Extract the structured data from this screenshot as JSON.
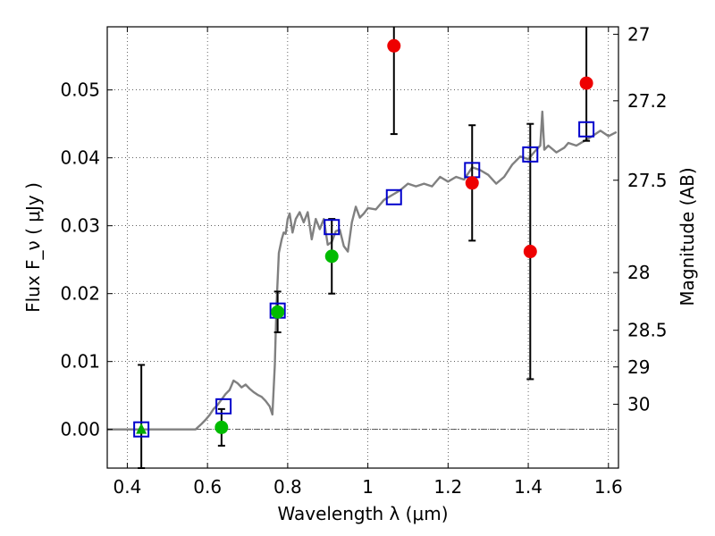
{
  "chart_data": {
    "type": "scatter",
    "title": "",
    "xlabel": "Wavelength  λ (μm)",
    "ylabel": "Flux  F_ν  ( μJy )",
    "y2label": "Magnitude (AB)",
    "xlim": [
      0.35,
      1.625
    ],
    "ylim": [
      -0.0057,
      0.0593
    ],
    "grid": true,
    "x_ticks": [
      0.4,
      0.6,
      0.8,
      1.0,
      1.2,
      1.4,
      1.6
    ],
    "x_tick_labels": [
      "0.4",
      "0.6",
      "0.8",
      "1",
      "1.2",
      "1.4",
      "1.6"
    ],
    "y_ticks": [
      0.0,
      0.01,
      0.02,
      0.03,
      0.04,
      0.05
    ],
    "y_tick_labels": [
      "0.00",
      "0.01",
      "0.02",
      "0.03",
      "0.04",
      "0.05"
    ],
    "y2_ticks": [
      {
        "label": "27",
        "flux": 0.0582
      },
      {
        "label": "27.2",
        "flux": 0.0484
      },
      {
        "label": "27.5",
        "flux": 0.0367
      },
      {
        "label": "28",
        "flux": 0.0231
      },
      {
        "label": "28.5",
        "flux": 0.0146
      },
      {
        "label": "29",
        "flux": 0.0092
      },
      {
        "label": "30",
        "flux": 0.0037
      }
    ],
    "zero_line": 0.0,
    "model_spectrum": {
      "name": "model",
      "color": "#808080",
      "x": [
        0.35,
        0.4,
        0.45,
        0.5,
        0.55,
        0.57,
        0.585,
        0.595,
        0.605,
        0.615,
        0.625,
        0.635,
        0.645,
        0.655,
        0.66,
        0.665,
        0.675,
        0.685,
        0.695,
        0.705,
        0.715,
        0.725,
        0.735,
        0.745,
        0.755,
        0.762,
        0.768,
        0.772,
        0.778,
        0.785,
        0.79,
        0.795,
        0.8,
        0.805,
        0.812,
        0.82,
        0.83,
        0.84,
        0.85,
        0.86,
        0.87,
        0.88,
        0.89,
        0.9,
        0.91,
        0.92,
        0.93,
        0.94,
        0.95,
        0.96,
        0.97,
        0.98,
        0.99,
        1.0,
        1.02,
        1.04,
        1.06,
        1.08,
        1.1,
        1.12,
        1.14,
        1.16,
        1.18,
        1.2,
        1.22,
        1.24,
        1.26,
        1.28,
        1.3,
        1.32,
        1.34,
        1.36,
        1.38,
        1.4,
        1.42,
        1.43,
        1.435,
        1.44,
        1.45,
        1.47,
        1.49,
        1.5,
        1.52,
        1.54,
        1.56,
        1.58,
        1.6,
        1.62
      ],
      "y": [
        0.0,
        0.0,
        0.0,
        0.0,
        0.0,
        0.0,
        0.0008,
        0.0014,
        0.0021,
        0.003,
        0.0036,
        0.0044,
        0.0052,
        0.0058,
        0.0065,
        0.0072,
        0.0068,
        0.0062,
        0.0066,
        0.006,
        0.0055,
        0.0051,
        0.0048,
        0.0042,
        0.0034,
        0.0022,
        0.0095,
        0.018,
        0.026,
        0.028,
        0.029,
        0.0288,
        0.031,
        0.0318,
        0.029,
        0.031,
        0.032,
        0.0305,
        0.032,
        0.028,
        0.031,
        0.0295,
        0.031,
        0.0272,
        0.0276,
        0.0292,
        0.0294,
        0.027,
        0.0262,
        0.0305,
        0.0328,
        0.0312,
        0.0318,
        0.0326,
        0.0324,
        0.0338,
        0.0345,
        0.0352,
        0.0362,
        0.0358,
        0.0362,
        0.0358,
        0.0372,
        0.0365,
        0.0372,
        0.0368,
        0.0386,
        0.0382,
        0.0375,
        0.0362,
        0.0372,
        0.039,
        0.0402,
        0.0398,
        0.0412,
        0.0418,
        0.0468,
        0.0412,
        0.0418,
        0.0408,
        0.0415,
        0.0422,
        0.0418,
        0.0425,
        0.0432,
        0.044,
        0.0432,
        0.0438
      ]
    },
    "series": [
      {
        "name": "model-photometry",
        "marker": "open-square",
        "color": "#0000cc",
        "x": [
          0.435,
          0.64,
          0.775,
          0.91,
          1.065,
          1.26,
          1.405,
          1.545
        ],
        "y": [
          0.0,
          0.0034,
          0.0175,
          0.0298,
          0.0342,
          0.0382,
          0.0405,
          0.0442
        ]
      },
      {
        "name": "upper-limit",
        "marker": "triangle",
        "color": "#00aa00",
        "x": [
          0.435
        ],
        "y": [
          0.0
        ],
        "err": [
          0.0095
        ]
      },
      {
        "name": "detected",
        "marker": "circle",
        "color": "#00bb00",
        "x": [
          0.635,
          0.775,
          0.91
        ],
        "y": [
          0.0003,
          0.0173,
          0.0255
        ],
        "err": [
          0.0027,
          0.003,
          0.0055
        ]
      },
      {
        "name": "marginal",
        "marker": "circle",
        "color": "#ee0000",
        "x": [
          1.065,
          1.26,
          1.405,
          1.545
        ],
        "y": [
          0.0565,
          0.0363,
          0.0262,
          0.051
        ],
        "err": [
          0.013,
          0.0085,
          0.0188,
          0.0085
        ]
      }
    ]
  }
}
